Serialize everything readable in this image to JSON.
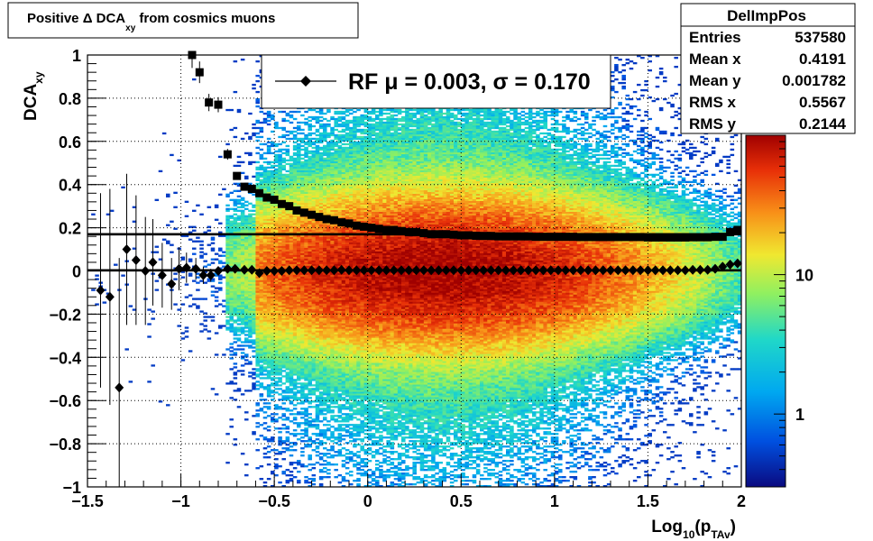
{
  "title": {
    "prefix": "Positive Δ DCA",
    "sub": "xy",
    "suffix": " from cosmics muons"
  },
  "stats": {
    "name": "DelImpPos",
    "rows": [
      {
        "label": "Entries",
        "value": "537580"
      },
      {
        "label": "Mean x",
        "value": "0.4191"
      },
      {
        "label": "Mean y",
        "value": "0.001782"
      },
      {
        "label": "RMS x",
        "value": "0.5567"
      },
      {
        "label": "RMS y",
        "value": "0.2144"
      }
    ]
  },
  "legend": {
    "text": "RF μ =  0.003, σ =   0.170"
  },
  "colors": {
    "frame": "#000000",
    "grid": "#000000",
    "palette": [
      "#0a0a80",
      "#0050e0",
      "#00a8f0",
      "#20d8c8",
      "#90f060",
      "#f0e830",
      "#f89018",
      "#e83008",
      "#a00000"
    ]
  },
  "chart_data": {
    "type": "heatmap",
    "xlabel": {
      "main": "Log",
      "sub1": "10",
      "mid": "(p",
      "sub2": "TAv",
      "end": ")"
    },
    "ylabel": {
      "main": "DCA",
      "sub": "xy"
    },
    "xlim": [
      -1.5,
      2.0
    ],
    "ylim": [
      -1.0,
      1.0
    ],
    "x_ticks": [
      {
        "v": -1.5,
        "label": "−1.5"
      },
      {
        "v": -1.0,
        "label": "−1"
      },
      {
        "v": -0.5,
        "label": "−0.5"
      },
      {
        "v": 0.0,
        "label": "0"
      },
      {
        "v": 0.5,
        "label": "0.5"
      },
      {
        "v": 1.0,
        "label": "1"
      },
      {
        "v": 1.5,
        "label": "1.5"
      },
      {
        "v": 2.0,
        "label": "2"
      }
    ],
    "y_ticks": [
      {
        "v": -1.0,
        "label": "−1"
      },
      {
        "v": -0.8,
        "label": "−0.8"
      },
      {
        "v": -0.6,
        "label": "−0.6"
      },
      {
        "v": -0.4,
        "label": "−0.4"
      },
      {
        "v": -0.2,
        "label": "−0.2"
      },
      {
        "v": 0.0,
        "label": "0"
      },
      {
        "v": 0.2,
        "label": "0.2"
      },
      {
        "v": 0.4,
        "label": "0.4"
      },
      {
        "v": 0.6,
        "label": "0.6"
      },
      {
        "v": 0.8,
        "label": "0.8"
      },
      {
        "v": 1.0,
        "label": "1"
      }
    ],
    "z_scale": "log",
    "z_range": [
      0.3,
      100
    ],
    "z_ticks": [
      {
        "v": 1,
        "label": "1"
      },
      {
        "v": 10,
        "label": "10"
      }
    ],
    "grid": true,
    "legend_position": "top-center",
    "density": {
      "peak_x": 0.4,
      "sigma_x": 0.62,
      "sigma_y": 0.17,
      "peak_z": 100
    },
    "fit_lines": {
      "mean": 0.003,
      "sigma": 0.17
    },
    "series": [
      {
        "marker": "square",
        "x": [
          -0.94,
          -0.9,
          -0.85,
          -0.8,
          -0.75,
          -0.7,
          -0.66,
          -0.62,
          -0.58,
          -0.54,
          -0.5,
          -0.46,
          -0.42,
          -0.38,
          -0.34,
          -0.3,
          -0.26,
          -0.22,
          -0.18,
          -0.14,
          -0.1,
          -0.06,
          -0.02,
          0.02,
          0.06,
          0.1,
          0.14,
          0.18,
          0.22,
          0.26,
          0.3,
          0.34,
          0.38,
          0.42,
          0.46,
          0.5,
          0.54,
          0.58,
          0.62,
          0.66,
          0.7,
          0.74,
          0.78,
          0.82,
          0.86,
          0.9,
          0.94,
          0.98,
          1.02,
          1.06,
          1.1,
          1.14,
          1.18,
          1.22,
          1.26,
          1.3,
          1.34,
          1.38,
          1.42,
          1.46,
          1.5,
          1.54,
          1.58,
          1.62,
          1.66,
          1.7,
          1.74,
          1.78,
          1.82,
          1.86,
          1.9,
          1.94,
          1.98
        ],
        "y": [
          1.0,
          0.92,
          0.78,
          0.77,
          0.54,
          0.44,
          0.39,
          0.38,
          0.36,
          0.34,
          0.33,
          0.31,
          0.3,
          0.28,
          0.27,
          0.26,
          0.25,
          0.24,
          0.235,
          0.225,
          0.22,
          0.21,
          0.205,
          0.2,
          0.195,
          0.19,
          0.19,
          0.185,
          0.18,
          0.18,
          0.175,
          0.17,
          0.17,
          0.17,
          0.168,
          0.165,
          0.165,
          0.163,
          0.162,
          0.162,
          0.16,
          0.16,
          0.16,
          0.16,
          0.16,
          0.158,
          0.158,
          0.158,
          0.158,
          0.158,
          0.158,
          0.157,
          0.157,
          0.157,
          0.157,
          0.157,
          0.157,
          0.157,
          0.157,
          0.157,
          0.155,
          0.155,
          0.155,
          0.155,
          0.155,
          0.155,
          0.156,
          0.156,
          0.156,
          0.158,
          0.158,
          0.18,
          0.19
        ],
        "err": [
          0.06,
          0.05,
          0.04,
          0.035,
          0.025,
          0.015,
          0.01,
          0.01,
          0.01,
          0.01,
          0.008,
          0.008,
          0.008,
          0.008,
          0.008,
          0.006,
          0.006,
          0.006,
          0.006,
          0.006,
          0.005,
          0.005,
          0.005,
          0.005,
          0.005,
          0.005,
          0.005,
          0.005,
          0.005,
          0.005,
          0.005,
          0.005,
          0.005,
          0.005,
          0.005,
          0.005,
          0.005,
          0.005,
          0.005,
          0.005,
          0.005,
          0.005,
          0.005,
          0.005,
          0.005,
          0.005,
          0.005,
          0.005,
          0.005,
          0.005,
          0.005,
          0.005,
          0.005,
          0.005,
          0.005,
          0.005,
          0.005,
          0.005,
          0.005,
          0.005,
          0.006,
          0.006,
          0.006,
          0.006,
          0.006,
          0.006,
          0.007,
          0.007,
          0.008,
          0.008,
          0.01,
          0.012,
          0.014
        ]
      },
      {
        "marker": "diamond",
        "x": [
          -1.43,
          -1.38,
          -1.33,
          -1.29,
          -1.24,
          -1.19,
          -1.15,
          -1.1,
          -1.05,
          -1.01,
          -0.97,
          -0.92,
          -0.88,
          -0.84,
          -0.8,
          -0.75,
          -0.71,
          -0.66,
          -0.62,
          -0.58,
          -0.54,
          -0.5,
          -0.46,
          -0.42,
          -0.38,
          -0.34,
          -0.3,
          -0.26,
          -0.22,
          -0.18,
          -0.14,
          -0.1,
          -0.06,
          -0.02,
          0.02,
          0.06,
          0.1,
          0.14,
          0.18,
          0.22,
          0.26,
          0.3,
          0.34,
          0.38,
          0.42,
          0.46,
          0.5,
          0.54,
          0.58,
          0.62,
          0.66,
          0.7,
          0.74,
          0.78,
          0.82,
          0.86,
          0.9,
          0.94,
          0.98,
          1.02,
          1.06,
          1.1,
          1.14,
          1.18,
          1.22,
          1.26,
          1.3,
          1.34,
          1.38,
          1.42,
          1.46,
          1.5,
          1.54,
          1.58,
          1.62,
          1.66,
          1.7,
          1.74,
          1.78,
          1.82,
          1.86,
          1.9,
          1.94,
          1.98
        ],
        "y": [
          -0.09,
          -0.12,
          -0.54,
          0.1,
          0.05,
          0.0,
          0.04,
          -0.02,
          -0.06,
          0.01,
          0.015,
          0.01,
          -0.02,
          -0.02,
          0.0,
          0.01,
          0.01,
          0.005,
          0.005,
          -0.01,
          0.0,
          0.0,
          0.0,
          0.003,
          0.003,
          0.003,
          0.003,
          0.003,
          0.003,
          0.003,
          0.005,
          0.003,
          0.003,
          0.003,
          0.003,
          0.003,
          0.003,
          0.003,
          0.003,
          0.003,
          0.003,
          0.003,
          0.003,
          0.003,
          0.003,
          0.003,
          0.003,
          0.003,
          0.003,
          0.003,
          0.003,
          0.003,
          0.003,
          0.003,
          0.003,
          0.003,
          0.003,
          0.003,
          0.003,
          0.003,
          0.003,
          0.003,
          0.003,
          0.003,
          0.003,
          0.003,
          0.003,
          0.003,
          0.003,
          0.003,
          0.003,
          0.003,
          0.003,
          0.003,
          0.003,
          0.003,
          0.003,
          0.005,
          0.005,
          0.005,
          0.01,
          0.02,
          0.03,
          0.035
        ],
        "err": [
          0.45,
          0.5,
          0.6,
          0.35,
          0.3,
          0.25,
          0.2,
          0.15,
          0.12,
          0.1,
          0.07,
          0.05,
          0.04,
          0.03,
          0.02,
          0.015,
          0.01,
          0.008,
          0.008,
          0.006,
          0.005,
          0.005,
          0.004,
          0.004,
          0.004,
          0.004,
          0.004,
          0.004,
          0.004,
          0.004,
          0.004,
          0.004,
          0.004,
          0.004,
          0.004,
          0.004,
          0.004,
          0.004,
          0.004,
          0.004,
          0.004,
          0.004,
          0.004,
          0.004,
          0.004,
          0.004,
          0.004,
          0.004,
          0.004,
          0.004,
          0.004,
          0.004,
          0.004,
          0.004,
          0.004,
          0.004,
          0.004,
          0.004,
          0.004,
          0.004,
          0.004,
          0.004,
          0.004,
          0.004,
          0.004,
          0.004,
          0.004,
          0.004,
          0.004,
          0.004,
          0.005,
          0.005,
          0.005,
          0.005,
          0.005,
          0.005,
          0.006,
          0.006,
          0.006,
          0.007,
          0.008,
          0.01,
          0.012,
          0.014
        ]
      }
    ]
  }
}
